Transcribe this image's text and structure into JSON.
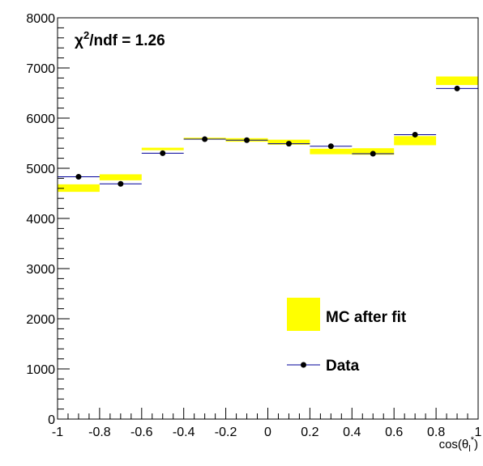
{
  "chart_data": {
    "type": "bar",
    "annotation": {
      "prefix": "χ",
      "superscript": "2",
      "suffix": "/ndf = 1.26"
    },
    "xlabel": {
      "base": "cos(θ",
      "subscript": "l",
      "superscript": "*",
      "close": ")"
    },
    "ylabel": "",
    "xlim": [
      -1,
      1
    ],
    "ylim": [
      0,
      8000
    ],
    "x_ticks": [
      -1,
      -0.8,
      -0.6,
      -0.4,
      -0.2,
      0,
      0.2,
      0.4,
      0.6,
      0.8,
      1
    ],
    "x_tick_labels": [
      "-1",
      "-0.8",
      "-0.6",
      "-0.4",
      "-0.2",
      "0",
      "0.2",
      "0.4",
      "0.6",
      "0.8",
      "1"
    ],
    "y_ticks": [
      0,
      1000,
      2000,
      3000,
      4000,
      5000,
      6000,
      7000,
      8000
    ],
    "y_tick_labels": [
      "0",
      "1000",
      "2000",
      "3000",
      "4000",
      "5000",
      "6000",
      "7000",
      "8000"
    ],
    "bin_edges": [
      -1,
      -0.8,
      -0.6,
      -0.4,
      -0.2,
      0,
      0.2,
      0.4,
      0.6,
      0.8,
      1
    ],
    "series": [
      {
        "name": "MC after fit",
        "kind": "band",
        "color": "#ffff00",
        "low": [
          4530,
          4760,
          5360,
          5570,
          5530,
          5470,
          5280,
          5270,
          5460,
          6660
        ],
        "high": [
          4680,
          4880,
          5410,
          5610,
          5600,
          5570,
          5390,
          5400,
          5640,
          6830
        ]
      },
      {
        "name": "Data",
        "kind": "points",
        "color": "#000000",
        "line_color": "#000099",
        "values": [
          4830,
          4690,
          5300,
          5580,
          5560,
          5490,
          5440,
          5290,
          5670,
          6590
        ]
      }
    ],
    "legend": {
      "position": "bottom-right",
      "entries": [
        "MC after fit",
        "Data"
      ]
    },
    "grid": false
  }
}
